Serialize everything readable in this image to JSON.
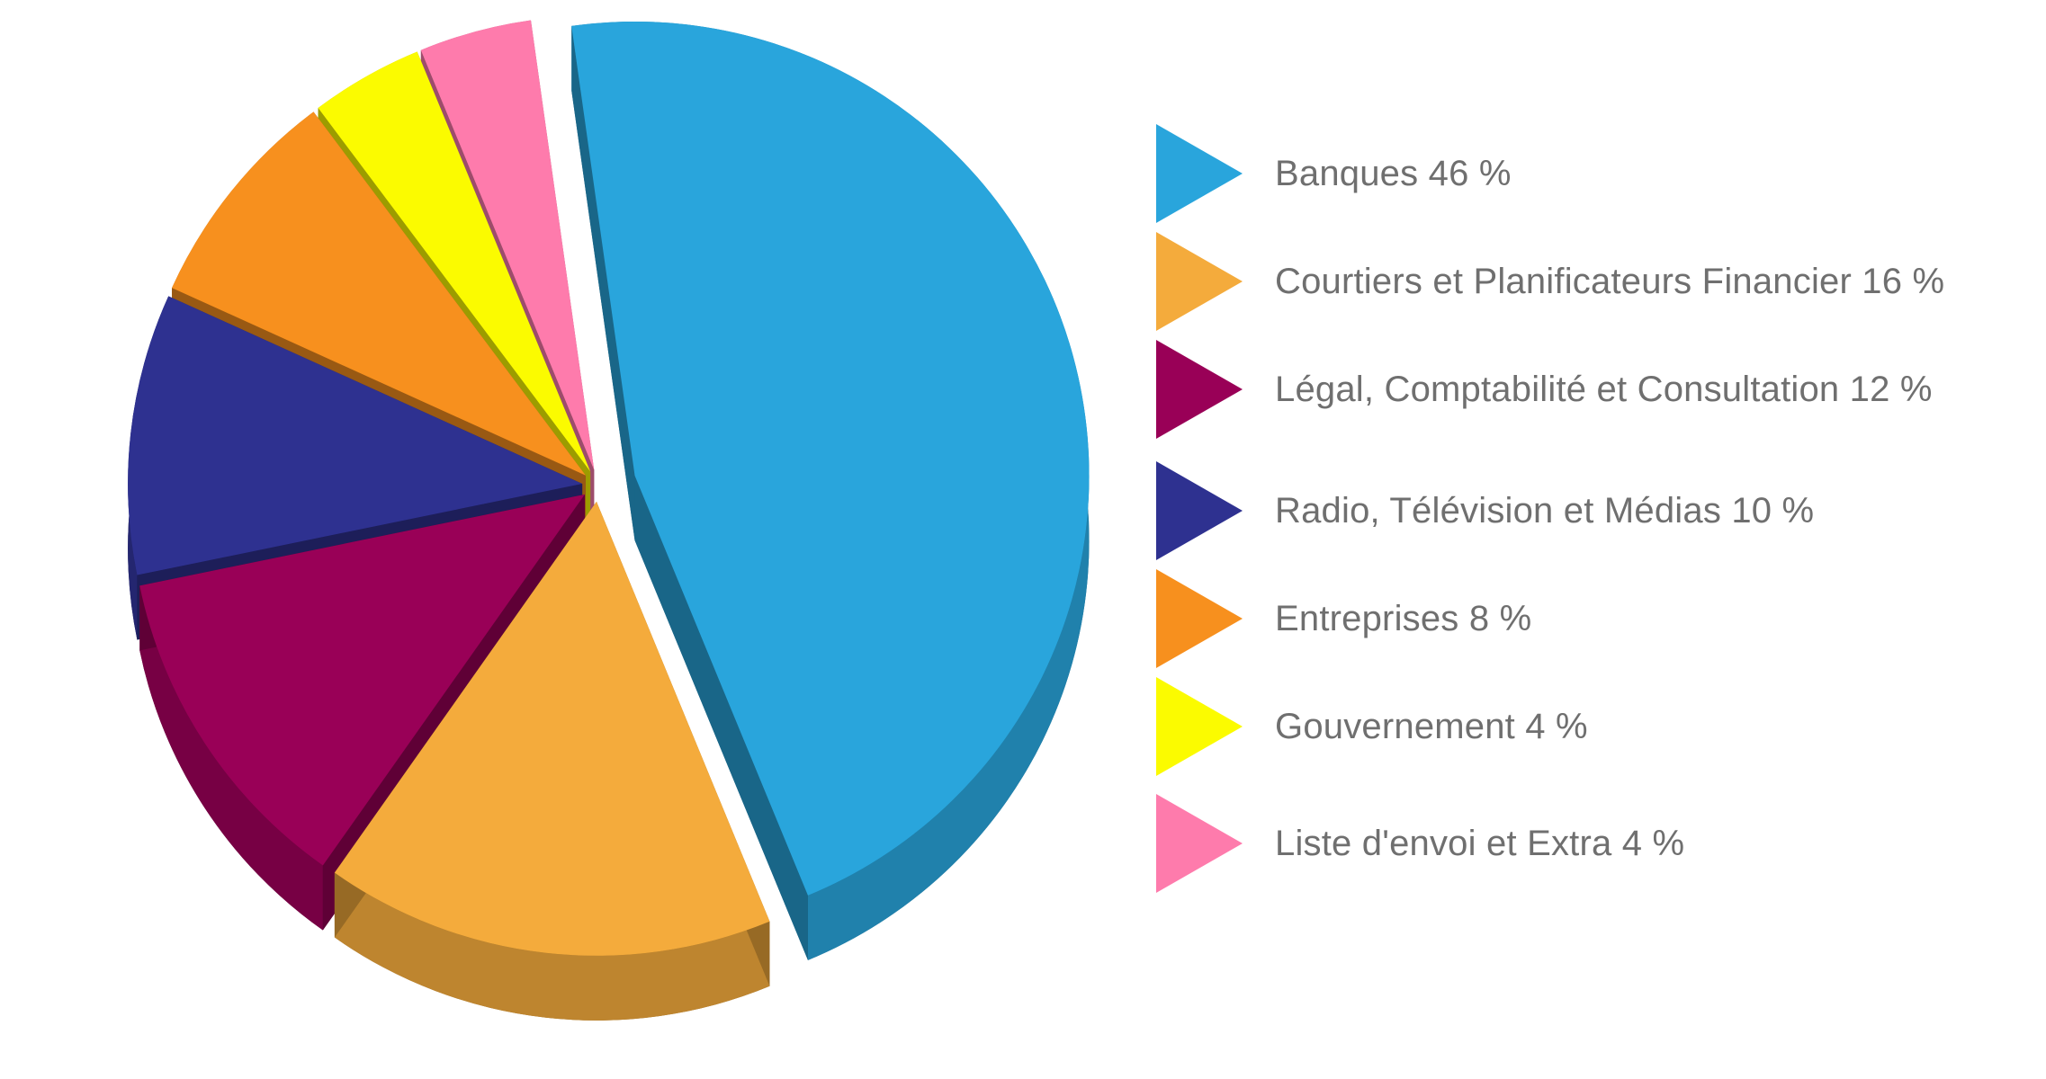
{
  "chart_data": {
    "type": "pie",
    "style": "3d-exploded",
    "slices": [
      {
        "label": "Banques 46 %",
        "value": 46,
        "color": "#29a5dc"
      },
      {
        "label": "Courtiers et Planificateurs Financier 16 %",
        "value": 16,
        "color": "#f4ab3c"
      },
      {
        "label": "Légal, Comptabilité et Consultation 12 %",
        "value": 12,
        "color": "#990057"
      },
      {
        "label": "Radio, Télévision et Médias 10 %",
        "value": 10,
        "color": "#2e3190"
      },
      {
        "label": "Entreprises 8 %",
        "value": 8,
        "color": "#f7901e"
      },
      {
        "label": "Gouvernement 4 %",
        "value": 4,
        "color": "#fbfb00"
      },
      {
        "label": "Liste d'envoi et Extra 4 %",
        "value": 4,
        "color": "#fe7bac"
      }
    ],
    "legend_position": "right"
  }
}
